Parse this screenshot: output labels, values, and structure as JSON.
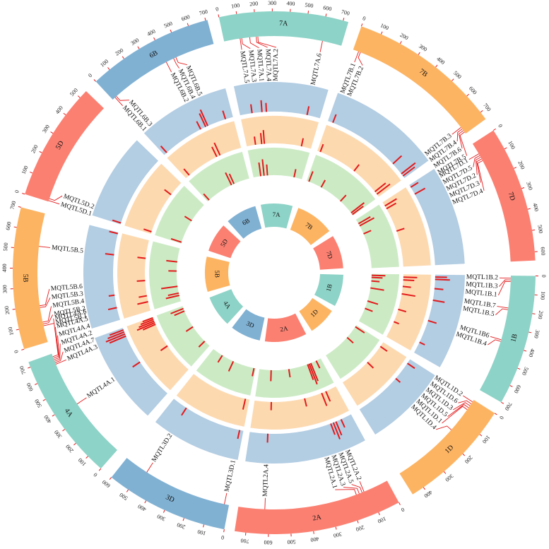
{
  "colors": {
    "chr": {
      "1B": "#8dd3c7",
      "1D": "#fdb462",
      "2A": "#fb8072",
      "3D": "#80b1d3",
      "4A": "#8dd3c7",
      "5B": "#fdb462",
      "5D": "#fb8072",
      "6B": "#80b1d3",
      "7A": "#8dd3c7",
      "7B": "#fdb462",
      "7D": "#fb8072"
    },
    "ring_blue": "#b3cde3",
    "ring_orange": "#fdd9b0",
    "ring_green": "#ccebc5",
    "mark": "#e31a1c",
    "line": "#e31a1c"
  },
  "chromosomes": [
    {
      "id": "1B",
      "label": "1B",
      "length": 700,
      "ticks": [
        0,
        100,
        200,
        300,
        400,
        500,
        600,
        700
      ]
    },
    {
      "id": "1D",
      "label": "1D",
      "length": 450,
      "ticks": [
        0,
        100,
        200,
        300,
        400
      ]
    },
    {
      "id": "2A",
      "label": "2A",
      "length": 750,
      "ticks": [
        0,
        100,
        200,
        300,
        400,
        500,
        600,
        700
      ]
    },
    {
      "id": "3D",
      "label": "3D",
      "length": 600,
      "ticks": [
        0,
        100,
        200,
        300,
        400,
        500,
        600
      ]
    },
    {
      "id": "4A",
      "label": "4A",
      "length": 730,
      "ticks": [
        0,
        100,
        200,
        300,
        400,
        500,
        600,
        700
      ]
    },
    {
      "id": "5B",
      "label": "5B",
      "length": 700,
      "ticks": [
        0,
        100,
        200,
        300,
        400,
        500,
        600,
        700
      ]
    },
    {
      "id": "5D",
      "label": "5D",
      "length": 540,
      "ticks": [
        0,
        100,
        200,
        300,
        400,
        500
      ]
    },
    {
      "id": "6B",
      "label": "6B",
      "length": 710,
      "ticks": [
        0,
        100,
        200,
        300,
        400,
        500,
        600,
        700
      ]
    },
    {
      "id": "7A",
      "label": "7A",
      "length": 730,
      "ticks": [
        0,
        100,
        200,
        300,
        400,
        500,
        600,
        700
      ]
    },
    {
      "id": "7B",
      "label": "7B",
      "length": 740,
      "ticks": [
        0,
        100,
        200,
        300,
        400,
        500,
        600,
        700
      ]
    },
    {
      "id": "7D",
      "label": "7D",
      "length": 640,
      "ticks": [
        0,
        100,
        200,
        300,
        400,
        500,
        600
      ]
    }
  ],
  "mqtls": [
    {
      "chr": "1B",
      "name": "MQTL1B.2",
      "pos": 15
    },
    {
      "chr": "1B",
      "name": "MQTL1B.3",
      "pos": 25
    },
    {
      "chr": "1B",
      "name": "MQTL1B.1",
      "pos": 35
    },
    {
      "chr": "1B",
      "name": "MQTL1B.7",
      "pos": 190
    },
    {
      "chr": "1B",
      "name": "MQTL1B.5",
      "pos": 200
    },
    {
      "chr": "1B",
      "name": "MQTL1B6",
      "pos": 380
    },
    {
      "chr": "1B",
      "name": "MQTL1B.4",
      "pos": 390
    },
    {
      "chr": "1D",
      "name": "MQTL1D.2",
      "pos": 10
    },
    {
      "chr": "1D",
      "name": "MQTL1D.6",
      "pos": 20
    },
    {
      "chr": "1D",
      "name": "MQTL1D.3",
      "pos": 30
    },
    {
      "chr": "1D",
      "name": "MQTL1D.5",
      "pos": 40
    },
    {
      "chr": "1D",
      "name": "MQTL1D.1",
      "pos": 50
    },
    {
      "chr": "1D",
      "name": "MQTL1D.4",
      "pos": 160
    },
    {
      "chr": "2A",
      "name": "MQTL2A.2",
      "pos": 125
    },
    {
      "chr": "2A",
      "name": "MQTL2A.5",
      "pos": 135
    },
    {
      "chr": "2A",
      "name": "MQTL2A.3",
      "pos": 150
    },
    {
      "chr": "2A",
      "name": "MQTL2A.1",
      "pos": 165
    },
    {
      "chr": "2A",
      "name": "MQTL2A.4",
      "pos": 620
    },
    {
      "chr": "3D",
      "name": "MQTL3D.1",
      "pos": 25
    },
    {
      "chr": "3D",
      "name": "MQTL3D.2",
      "pos": 470
    },
    {
      "chr": "4A",
      "name": "MQTL4A.1",
      "pos": 380
    },
    {
      "chr": "4A",
      "name": "MQTL4A.3",
      "pos": 660
    },
    {
      "chr": "4A",
      "name": "MQTL4A.7",
      "pos": 670
    },
    {
      "chr": "4A",
      "name": "MQTL4A.2",
      "pos": 680
    },
    {
      "chr": "4A",
      "name": "MQTL4A.4",
      "pos": 690
    },
    {
      "chr": "4A",
      "name": "MQTL4A.5",
      "pos": 700
    },
    {
      "chr": "4A",
      "name": "MQTL4A.6",
      "pos": 710
    },
    {
      "chr": "5B",
      "name": "MQTL5B.1",
      "pos": 90
    },
    {
      "chr": "5B",
      "name": "MQTL5B.2",
      "pos": 100
    },
    {
      "chr": "5B",
      "name": "MQTL5B.4",
      "pos": 110
    },
    {
      "chr": "5B",
      "name": "MQTL5B.3",
      "pos": 190
    },
    {
      "chr": "5B",
      "name": "MQTL5B.6",
      "pos": 200
    },
    {
      "chr": "5B",
      "name": "MQTL5B.5",
      "pos": 520
    },
    {
      "chr": "5D",
      "name": "MQTL5D.1",
      "pos": 5
    },
    {
      "chr": "5D",
      "name": "MQTL5D.2",
      "pos": 15
    },
    {
      "chr": "6B",
      "name": "MQTL6B.1",
      "pos": 20
    },
    {
      "chr": "6B",
      "name": "MQTL6B.3",
      "pos": 30
    },
    {
      "chr": "6B",
      "name": "MQTL6B.2",
      "pos": 400
    },
    {
      "chr": "6B",
      "name": "MQTL6B.4",
      "pos": 450
    },
    {
      "chr": "6B",
      "name": "MQTL6B.5",
      "pos": 465
    },
    {
      "chr": "7A",
      "name": "MQTL7A.5",
      "pos": 100
    },
    {
      "chr": "7A",
      "name": "MQTL7A.3",
      "pos": 110
    },
    {
      "chr": "7A",
      "name": "MQTL7A.1",
      "pos": 160
    },
    {
      "chr": "7A",
      "name": "MQTL7A.4",
      "pos": 200
    },
    {
      "chr": "7A",
      "name": "MQTL7A.2",
      "pos": 210
    },
    {
      "chr": "7A",
      "name": "MQTL7A.6",
      "pos": 610
    },
    {
      "chr": "7B",
      "name": "MQTL7B.1",
      "pos": 30
    },
    {
      "chr": "7B",
      "name": "MQTL7B.2",
      "pos": 40
    },
    {
      "chr": "7B",
      "name": "MQTL7B.3",
      "pos": 700
    },
    {
      "chr": "7B",
      "name": "MQTL7B.4",
      "pos": 710
    },
    {
      "chr": "7B",
      "name": "MQTL7B.6",
      "pos": 720
    },
    {
      "chr": "7B",
      "name": "MQTL7B.5",
      "pos": 730
    },
    {
      "chr": "7D",
      "name": "MQTL7D.1",
      "pos": 60
    },
    {
      "chr": "7D",
      "name": "MQTL7D.5",
      "pos": 70
    },
    {
      "chr": "7D",
      "name": "MQTL7D.2",
      "pos": 80
    },
    {
      "chr": "7D",
      "name": "MQTL7D.3",
      "pos": 90
    },
    {
      "chr": "7D",
      "name": "MQTL7D.4",
      "pos": 100
    }
  ],
  "tracks": {
    "blue": [
      {
        "chr": "1B",
        "marks": [
          [
            20,
            0.4
          ],
          [
            40,
            0.5
          ],
          [
            120,
            0.3
          ],
          [
            220,
            0.4
          ],
          [
            400,
            0.3
          ],
          [
            600,
            0.2
          ]
        ]
      },
      {
        "chr": "1D",
        "marks": [
          [
            30,
            0.3
          ],
          [
            150,
            0.2
          ]
        ]
      },
      {
        "chr": "2A",
        "marks": [
          [
            80,
            0.3
          ],
          [
            120,
            0.5
          ],
          [
            140,
            0.6
          ],
          [
            160,
            0.4
          ],
          [
            620,
            0.3
          ]
        ]
      },
      {
        "chr": "3D",
        "marks": [
          [
            30,
            0.3
          ],
          [
            480,
            0.3
          ]
        ]
      },
      {
        "chr": "4A",
        "marks": [
          [
            380,
            0.3
          ],
          [
            650,
            0.6
          ],
          [
            670,
            0.7
          ],
          [
            690,
            0.6
          ],
          [
            710,
            0.5
          ]
        ]
      },
      {
        "chr": "5B",
        "marks": [
          [
            100,
            0.3
          ],
          [
            200,
            0.2
          ],
          [
            520,
            0.3
          ],
          [
            690,
            0.3
          ]
        ]
      },
      {
        "chr": "5D",
        "marks": [
          [
            10,
            0.3
          ]
        ]
      },
      {
        "chr": "6B",
        "marks": [
          [
            30,
            0.3
          ],
          [
            400,
            0.3
          ],
          [
            450,
            0.5
          ],
          [
            470,
            0.6
          ],
          [
            640,
            0.3
          ]
        ]
      },
      {
        "chr": "7A",
        "marks": [
          [
            110,
            0.3
          ],
          [
            200,
            0.4
          ],
          [
            240,
            0.3
          ],
          [
            610,
            0.3
          ]
        ]
      },
      {
        "chr": "7B",
        "marks": [
          [
            40,
            0.3
          ],
          [
            600,
            0.4
          ],
          [
            700,
            0.6
          ],
          [
            720,
            0.5
          ]
        ]
      },
      {
        "chr": "7D",
        "marks": [
          [
            20,
            0.3
          ],
          [
            80,
            0.4
          ]
        ]
      }
    ],
    "orange": [
      {
        "chr": "1B",
        "marks": [
          [
            30,
            0.5
          ],
          [
            60,
            0.4
          ],
          [
            130,
            0.3
          ],
          [
            210,
            0.5
          ],
          [
            380,
            0.3
          ],
          [
            520,
            0.2
          ]
        ]
      },
      {
        "chr": "1D",
        "marks": [
          [
            40,
            0.3
          ],
          [
            200,
            0.3
          ]
        ]
      },
      {
        "chr": "2A",
        "marks": [
          [
            100,
            0.4
          ],
          [
            140,
            0.5
          ],
          [
            300,
            0.3
          ],
          [
            600,
            0.3
          ]
        ]
      },
      {
        "chr": "3D",
        "marks": [
          [
            40,
            0.4
          ]
        ]
      },
      {
        "chr": "4A",
        "marks": [
          [
            360,
            0.3
          ],
          [
            640,
            0.5
          ],
          [
            660,
            0.7
          ],
          [
            680,
            0.6
          ],
          [
            700,
            0.5
          ],
          [
            720,
            0.4
          ]
        ]
      },
      {
        "chr": "5B",
        "marks": [
          [
            90,
            0.4
          ],
          [
            150,
            0.3
          ],
          [
            300,
            0.3
          ],
          [
            520,
            0.3
          ]
        ]
      },
      {
        "chr": "5D",
        "marks": [
          [
            20,
            0.3
          ],
          [
            400,
            0.3
          ]
        ]
      },
      {
        "chr": "6B",
        "marks": [
          [
            50,
            0.3
          ],
          [
            420,
            0.4
          ],
          [
            460,
            0.5
          ]
        ]
      },
      {
        "chr": "7A",
        "marks": [
          [
            100,
            0.3
          ],
          [
            170,
            0.4
          ],
          [
            200,
            0.5
          ],
          [
            620,
            0.3
          ]
        ]
      },
      {
        "chr": "7B",
        "marks": [
          [
            30,
            0.3
          ],
          [
            400,
            0.3
          ],
          [
            680,
            0.5
          ],
          [
            710,
            0.6
          ]
        ]
      },
      {
        "chr": "7D",
        "marks": [
          [
            40,
            0.5
          ],
          [
            70,
            0.4
          ],
          [
            300,
            0.3
          ]
        ]
      }
    ],
    "green": [
      {
        "chr": "1B",
        "marks": [
          [
            20,
            0.5
          ],
          [
            50,
            0.4
          ],
          [
            100,
            0.3
          ],
          [
            200,
            0.5
          ],
          [
            390,
            0.4
          ],
          [
            500,
            0.3
          ]
        ]
      },
      {
        "chr": "1D",
        "marks": [
          [
            20,
            0.4
          ],
          [
            160,
            0.3
          ]
        ]
      },
      {
        "chr": "2A",
        "marks": [
          [
            60,
            0.3
          ],
          [
            130,
            0.7
          ],
          [
            150,
            0.8
          ],
          [
            170,
            0.6
          ],
          [
            400,
            0.3
          ],
          [
            610,
            0.4
          ]
        ]
      },
      {
        "chr": "3D",
        "marks": [
          [
            20,
            0.3
          ],
          [
            300,
            0.4
          ],
          [
            460,
            0.3
          ]
        ]
      },
      {
        "chr": "4A",
        "marks": [
          [
            100,
            0.3
          ],
          [
            380,
            0.3
          ],
          [
            650,
            0.4
          ],
          [
            690,
            0.5
          ]
        ]
      },
      {
        "chr": "5B",
        "marks": [
          [
            80,
            0.5
          ],
          [
            110,
            0.4
          ],
          [
            200,
            0.6
          ],
          [
            400,
            0.3
          ],
          [
            520,
            0.4
          ]
        ]
      },
      {
        "chr": "5D",
        "marks": [
          [
            15,
            0.4
          ],
          [
            300,
            0.3
          ]
        ]
      },
      {
        "chr": "6B",
        "marks": [
          [
            30,
            0.3
          ],
          [
            430,
            0.5
          ],
          [
            470,
            0.4
          ]
        ]
      },
      {
        "chr": "7A",
        "marks": [
          [
            110,
            0.5
          ],
          [
            160,
            0.6
          ],
          [
            210,
            0.4
          ],
          [
            610,
            0.3
          ]
        ]
      },
      {
        "chr": "7B",
        "marks": [
          [
            30,
            0.4
          ],
          [
            200,
            0.3
          ],
          [
            500,
            0.3
          ],
          [
            700,
            0.6
          ],
          [
            725,
            0.5
          ]
        ]
      },
      {
        "chr": "7D",
        "marks": [
          [
            60,
            0.5
          ],
          [
            90,
            0.6
          ],
          [
            200,
            0.3
          ]
        ]
      }
    ]
  }
}
